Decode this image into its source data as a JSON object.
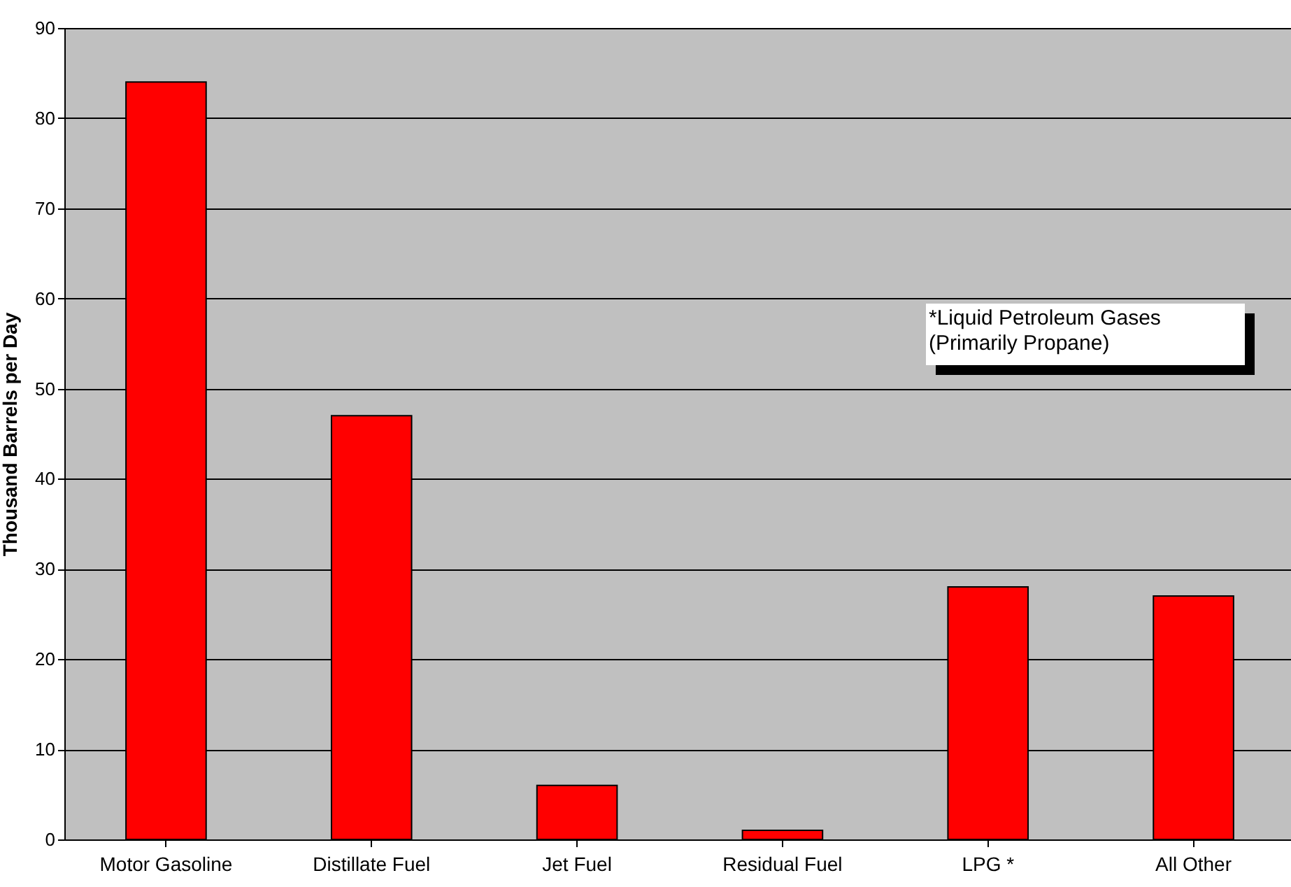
{
  "chart_data": {
    "type": "bar",
    "ylabel": "Thousand Barrels per Day",
    "categories": [
      "Motor Gasoline",
      "Distillate Fuel",
      "Jet Fuel",
      "Residual Fuel",
      "LPG *",
      "All Other"
    ],
    "values": [
      84,
      47,
      6,
      1,
      28,
      27
    ],
    "color": "#ff0000",
    "ylim": [
      0,
      90
    ],
    "yticks": [
      0,
      10,
      20,
      30,
      40,
      50,
      60,
      70,
      80,
      90
    ],
    "grid": "y",
    "annotations": [
      "*Liquid Petroleum Gases\n(Primarily Propane)"
    ]
  }
}
